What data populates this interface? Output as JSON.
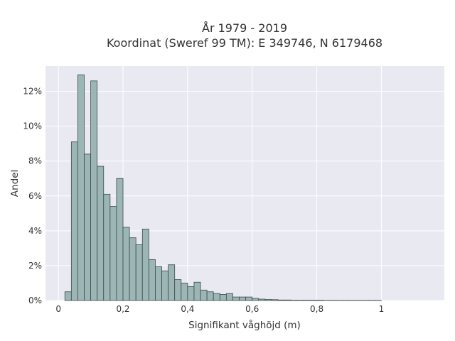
{
  "chart_data": {
    "type": "bar",
    "title_line1": "År 1979 - 2019",
    "title_line2": "Koordinat (Sweref 99 TM): E 349746, N 6179468",
    "xlabel": "Signifikant våghöjd (m)",
    "ylabel": "Andel",
    "xlim": [
      -0.04,
      1.195
    ],
    "ylim": [
      0,
      0.1345
    ],
    "x_ticks": [
      {
        "value": 0,
        "label": "0"
      },
      {
        "value": 0.2,
        "label": "0,2"
      },
      {
        "value": 0.4,
        "label": "0,4"
      },
      {
        "value": 0.6,
        "label": "0,6"
      },
      {
        "value": 0.8,
        "label": "0,8"
      },
      {
        "value": 1.0,
        "label": "1"
      }
    ],
    "y_ticks": [
      {
        "value": 0,
        "label": "0%"
      },
      {
        "value": 0.02,
        "label": "2%"
      },
      {
        "value": 0.04,
        "label": "4%"
      },
      {
        "value": 0.06,
        "label": "6%"
      },
      {
        "value": 0.08,
        "label": "8%"
      },
      {
        "value": 0.1,
        "label": "10%"
      },
      {
        "value": 0.12,
        "label": "12%"
      }
    ],
    "bin_width": 0.02,
    "bin_start": 0.02,
    "values": [
      0.005,
      0.091,
      0.1295,
      0.084,
      0.126,
      0.077,
      0.061,
      0.054,
      0.07,
      0.042,
      0.036,
      0.032,
      0.041,
      0.0235,
      0.0195,
      0.017,
      0.0205,
      0.012,
      0.01,
      0.008,
      0.0105,
      0.006,
      0.005,
      0.004,
      0.0035,
      0.004,
      0.002,
      0.002,
      0.002,
      0.0012,
      0.0008,
      0.0006,
      0.0005,
      0.0003,
      0.0003,
      0.0002,
      0.0002,
      0.0002,
      0.0002,
      0.0002,
      0.0001,
      0.0001,
      0.0001,
      0.0001,
      0.0001,
      0.0001,
      0.0001,
      0.0001,
      0.0001
    ],
    "colors": {
      "plot_background": "#e9e9f1",
      "grid": "#ffffff",
      "bar_fill": "#9cb5b5",
      "bar_stroke": "#3d4a4a"
    }
  }
}
